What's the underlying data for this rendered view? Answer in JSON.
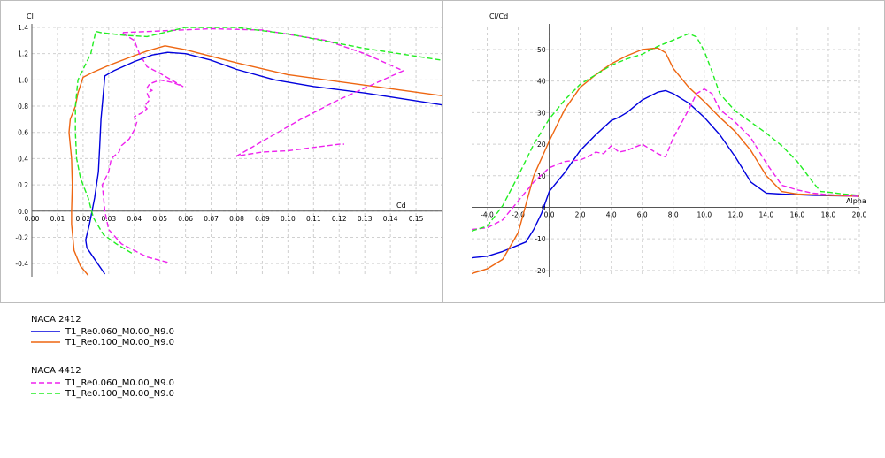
{
  "chart_data": [
    {
      "type": "line",
      "title": "",
      "xlabel": "Cd",
      "ylabel": "Cl",
      "xlim": [
        0.0,
        0.16
      ],
      "ylim": [
        -0.5,
        1.4
      ],
      "x_ticks": [
        0.0,
        0.01,
        0.02,
        0.03,
        0.04,
        0.05,
        0.06,
        0.07,
        0.08,
        0.09,
        0.1,
        0.11,
        0.12,
        0.13,
        0.14,
        0.15
      ],
      "x_tick_labels": [
        "0.00",
        "0.01",
        "0.02",
        "0.03",
        "0.04",
        "0.05",
        "0.06",
        "0.07",
        "0.08",
        "0.09",
        "0.10",
        "0.11",
        "0.12",
        "0.13",
        "0.14",
        "0.15"
      ],
      "y_ticks": [
        -0.4,
        -0.2,
        0.0,
        0.2,
        0.4,
        0.6,
        0.8,
        1.0,
        1.2,
        1.4
      ],
      "y_tick_labels": [
        "-0.4",
        "-0.2",
        "0.0",
        "0.2",
        "0.4",
        "0.6",
        "0.8",
        "1.0",
        "1.2",
        "1.4"
      ],
      "grid": true,
      "series": [
        {
          "name": "T1_Re0.060_M0.00_N9.0",
          "group": "NACA 2412",
          "color": "#0000dd",
          "dash": "solid",
          "x": [
            0.0285,
            0.025,
            0.0215,
            0.021,
            0.0225,
            0.0245,
            0.026,
            0.0265,
            0.027,
            0.0285,
            0.032,
            0.04,
            0.047,
            0.053,
            0.06,
            0.07,
            0.08,
            0.095,
            0.11,
            0.13,
            0.15,
            0.16
          ],
          "y": [
            -0.48,
            -0.38,
            -0.28,
            -0.22,
            -0.1,
            0.1,
            0.3,
            0.5,
            0.7,
            1.03,
            1.07,
            1.14,
            1.19,
            1.21,
            1.2,
            1.15,
            1.08,
            1.0,
            0.95,
            0.9,
            0.84,
            0.81
          ]
        },
        {
          "name": "T1_Re0.100_M0.00_N9.0",
          "group": "NACA 2412",
          "color": "#ee6611",
          "dash": "solid",
          "x": [
            0.022,
            0.019,
            0.0165,
            0.0155,
            0.0155,
            0.0158,
            0.0155,
            0.0145,
            0.015,
            0.017,
            0.018,
            0.02,
            0.024,
            0.03,
            0.038,
            0.045,
            0.052,
            0.06,
            0.07,
            0.08,
            0.1,
            0.13,
            0.16
          ],
          "y": [
            -0.49,
            -0.42,
            -0.3,
            -0.1,
            0.0,
            0.2,
            0.4,
            0.6,
            0.7,
            0.8,
            0.9,
            1.02,
            1.06,
            1.11,
            1.17,
            1.22,
            1.26,
            1.23,
            1.18,
            1.13,
            1.04,
            0.96,
            0.88
          ]
        },
        {
          "name": "T1_Re0.060_M0.00_N9.0",
          "group": "NACA 4412",
          "color": "#ee22ee",
          "dash": "dashed",
          "x": [
            0.053,
            0.045,
            0.04,
            0.035,
            0.03,
            0.0285,
            0.0275,
            0.03,
            0.031,
            0.034,
            0.035,
            0.038,
            0.04,
            0.041,
            0.04,
            0.043,
            0.045,
            0.044,
            0.046,
            0.045,
            0.047,
            0.045,
            0.046,
            0.05,
            0.055,
            0.059,
            0.05,
            0.045,
            0.042,
            0.04,
            0.035,
            0.07,
            0.09,
            0.115,
            0.13,
            0.145,
            0.12,
            0.105,
            0.08,
            0.09,
            0.1,
            0.12,
            0.122
          ],
          "y": [
            -0.39,
            -0.35,
            -0.3,
            -0.25,
            -0.14,
            0.0,
            0.2,
            0.3,
            0.4,
            0.45,
            0.5,
            0.55,
            0.62,
            0.68,
            0.72,
            0.75,
            0.78,
            0.8,
            0.85,
            0.9,
            0.92,
            0.94,
            0.97,
            1.0,
            0.98,
            0.95,
            1.05,
            1.1,
            1.2,
            1.3,
            1.36,
            1.39,
            1.38,
            1.3,
            1.2,
            1.07,
            0.85,
            0.7,
            0.42,
            0.45,
            0.46,
            0.51,
            0.51
          ]
        },
        {
          "name": "T1_Re0.100_M0.00_N9.0",
          "group": "NACA 4412",
          "color": "#22ee22",
          "dash": "dashed",
          "x": [
            0.039,
            0.033,
            0.028,
            0.024,
            0.022,
            0.019,
            0.0175,
            0.017,
            0.017,
            0.018,
            0.0205,
            0.023,
            0.025,
            0.027,
            0.036,
            0.045,
            0.06,
            0.08,
            0.1,
            0.13,
            0.16
          ],
          "y": [
            -0.32,
            -0.25,
            -0.18,
            -0.05,
            0.1,
            0.25,
            0.4,
            0.6,
            0.8,
            1.0,
            1.1,
            1.2,
            1.37,
            1.36,
            1.34,
            1.33,
            1.4,
            1.4,
            1.35,
            1.24,
            1.15
          ]
        }
      ]
    },
    {
      "type": "line",
      "title": "",
      "xlabel": "Alpha",
      "ylabel": "Cl/Cd",
      "xlim": [
        -5.0,
        20.0
      ],
      "ylim": [
        -22,
        57
      ],
      "x_ticks": [
        -4.0,
        -2.0,
        0.0,
        2.0,
        4.0,
        6.0,
        8.0,
        10.0,
        12.0,
        14.0,
        16.0,
        18.0,
        20.0
      ],
      "x_tick_labels": [
        "-4.0",
        "-2.0",
        "0.0",
        "2.0",
        "4.0",
        "6.0",
        "8.0",
        "10.0",
        "12.0",
        "14.0",
        "16.0",
        "18.0",
        "20.0"
      ],
      "y_ticks": [
        -20,
        -10,
        0,
        10,
        20,
        30,
        40,
        50
      ],
      "y_tick_labels": [
        "-20",
        "-10",
        "0",
        "10",
        "20",
        "30",
        "40",
        "50"
      ],
      "grid": true,
      "series": [
        {
          "name": "T1_Re0.060_M0.00_N9.0",
          "group": "NACA 2412",
          "color": "#0000dd",
          "dash": "solid",
          "x": [
            -5.0,
            -4.0,
            -3.0,
            -2.0,
            -1.5,
            -1.0,
            -0.5,
            0.0,
            1.0,
            2.0,
            3.0,
            4.0,
            4.5,
            5.0,
            6.0,
            7.0,
            7.5,
            8.0,
            9.0,
            10.0,
            11.0,
            12.0,
            13.0,
            14.0,
            15.0,
            16.0,
            17.0,
            18.0,
            19.0,
            20.0
          ],
          "y": [
            -16,
            -15.5,
            -14,
            -12,
            -11,
            -7,
            -2,
            5,
            11,
            18,
            23,
            27.5,
            28.5,
            30,
            34,
            36.5,
            37,
            36,
            33,
            28.5,
            23,
            16,
            8,
            4.5,
            4.2,
            4,
            3.8,
            3.7,
            3.6,
            3.5
          ]
        },
        {
          "name": "T1_Re0.100_M0.00_N9.0",
          "group": "NACA 2412",
          "color": "#ee6611",
          "dash": "solid",
          "x": [
            -5.0,
            -4.0,
            -3.0,
            -2.0,
            -1.0,
            0.0,
            1.0,
            2.0,
            3.0,
            4.0,
            5.0,
            6.0,
            7.0,
            7.5,
            8.0,
            9.0,
            10.0,
            11.0,
            12.0,
            13.0,
            14.0,
            15.0,
            16.0,
            17.0,
            18.0,
            19.0,
            20.0
          ],
          "y": [
            -21,
            -19.5,
            -16.5,
            -8,
            10,
            21,
            31,
            38,
            42,
            45.5,
            48,
            50,
            50.5,
            49,
            44,
            38,
            33.5,
            28.5,
            24,
            18,
            10,
            5,
            4.2,
            4.0,
            3.8,
            3.6,
            3.5
          ]
        },
        {
          "name": "T1_Re0.060_M0.00_N9.0",
          "group": "NACA 4412",
          "color": "#ee22ee",
          "dash": "dashed",
          "x": [
            -5.0,
            -4.0,
            -3.0,
            -2.0,
            -1.0,
            0.0,
            1.0,
            2.0,
            2.5,
            3.0,
            3.5,
            4.0,
            4.5,
            5.0,
            6.0,
            7.0,
            7.5,
            8.0,
            9.0,
            9.5,
            10.0,
            10.5,
            11.0,
            12.0,
            13.0,
            14.0,
            15.0,
            16.0,
            17.0,
            18.0,
            19.0,
            20.0
          ],
          "y": [
            -7,
            -6.5,
            -4,
            2,
            8,
            12.5,
            14.5,
            15,
            16,
            17.5,
            17,
            19.5,
            17.5,
            18,
            20,
            17,
            16,
            22,
            31,
            36,
            37.5,
            36,
            31,
            27,
            22,
            14,
            7,
            5.5,
            4.5,
            4,
            3.8,
            3.5
          ]
        },
        {
          "name": "T1_Re0.100_M0.00_N9.0",
          "group": "NACA 4412",
          "color": "#22ee22",
          "dash": "dashed",
          "x": [
            -5.0,
            -4.0,
            -3.0,
            -2.0,
            -1.0,
            0.0,
            1.0,
            2.0,
            3.0,
            4.0,
            5.0,
            6.0,
            7.0,
            8.0,
            9.0,
            9.5,
            10.0,
            10.5,
            11.0,
            12.0,
            13.0,
            14.0,
            15.0,
            16.0,
            17.0,
            17.5,
            18.0,
            19.0,
            20.0
          ],
          "y": [
            -7.5,
            -6,
            0.5,
            10,
            20,
            28,
            34,
            39,
            42,
            45,
            47,
            48.5,
            51,
            53,
            55,
            54,
            49.5,
            43,
            36,
            30.5,
            27,
            23.5,
            19.5,
            14.5,
            8,
            5,
            4.8,
            4.2,
            3.8
          ]
        }
      ]
    }
  ],
  "legend": {
    "groups": [
      {
        "title": "NACA 2412",
        "items": [
          {
            "label": "T1_Re0.060_M0.00_N9.0",
            "color": "#0000dd",
            "dash": "solid"
          },
          {
            "label": "T1_Re0.100_M0.00_N9.0",
            "color": "#ee6611",
            "dash": "solid"
          }
        ]
      },
      {
        "title": "NACA 4412",
        "items": [
          {
            "label": "T1_Re0.060_M0.00_N9.0",
            "color": "#ee22ee",
            "dash": "dashed"
          },
          {
            "label": "T1_Re0.100_M0.00_N9.0",
            "color": "#22ee22",
            "dash": "dashed"
          }
        ]
      }
    ]
  }
}
